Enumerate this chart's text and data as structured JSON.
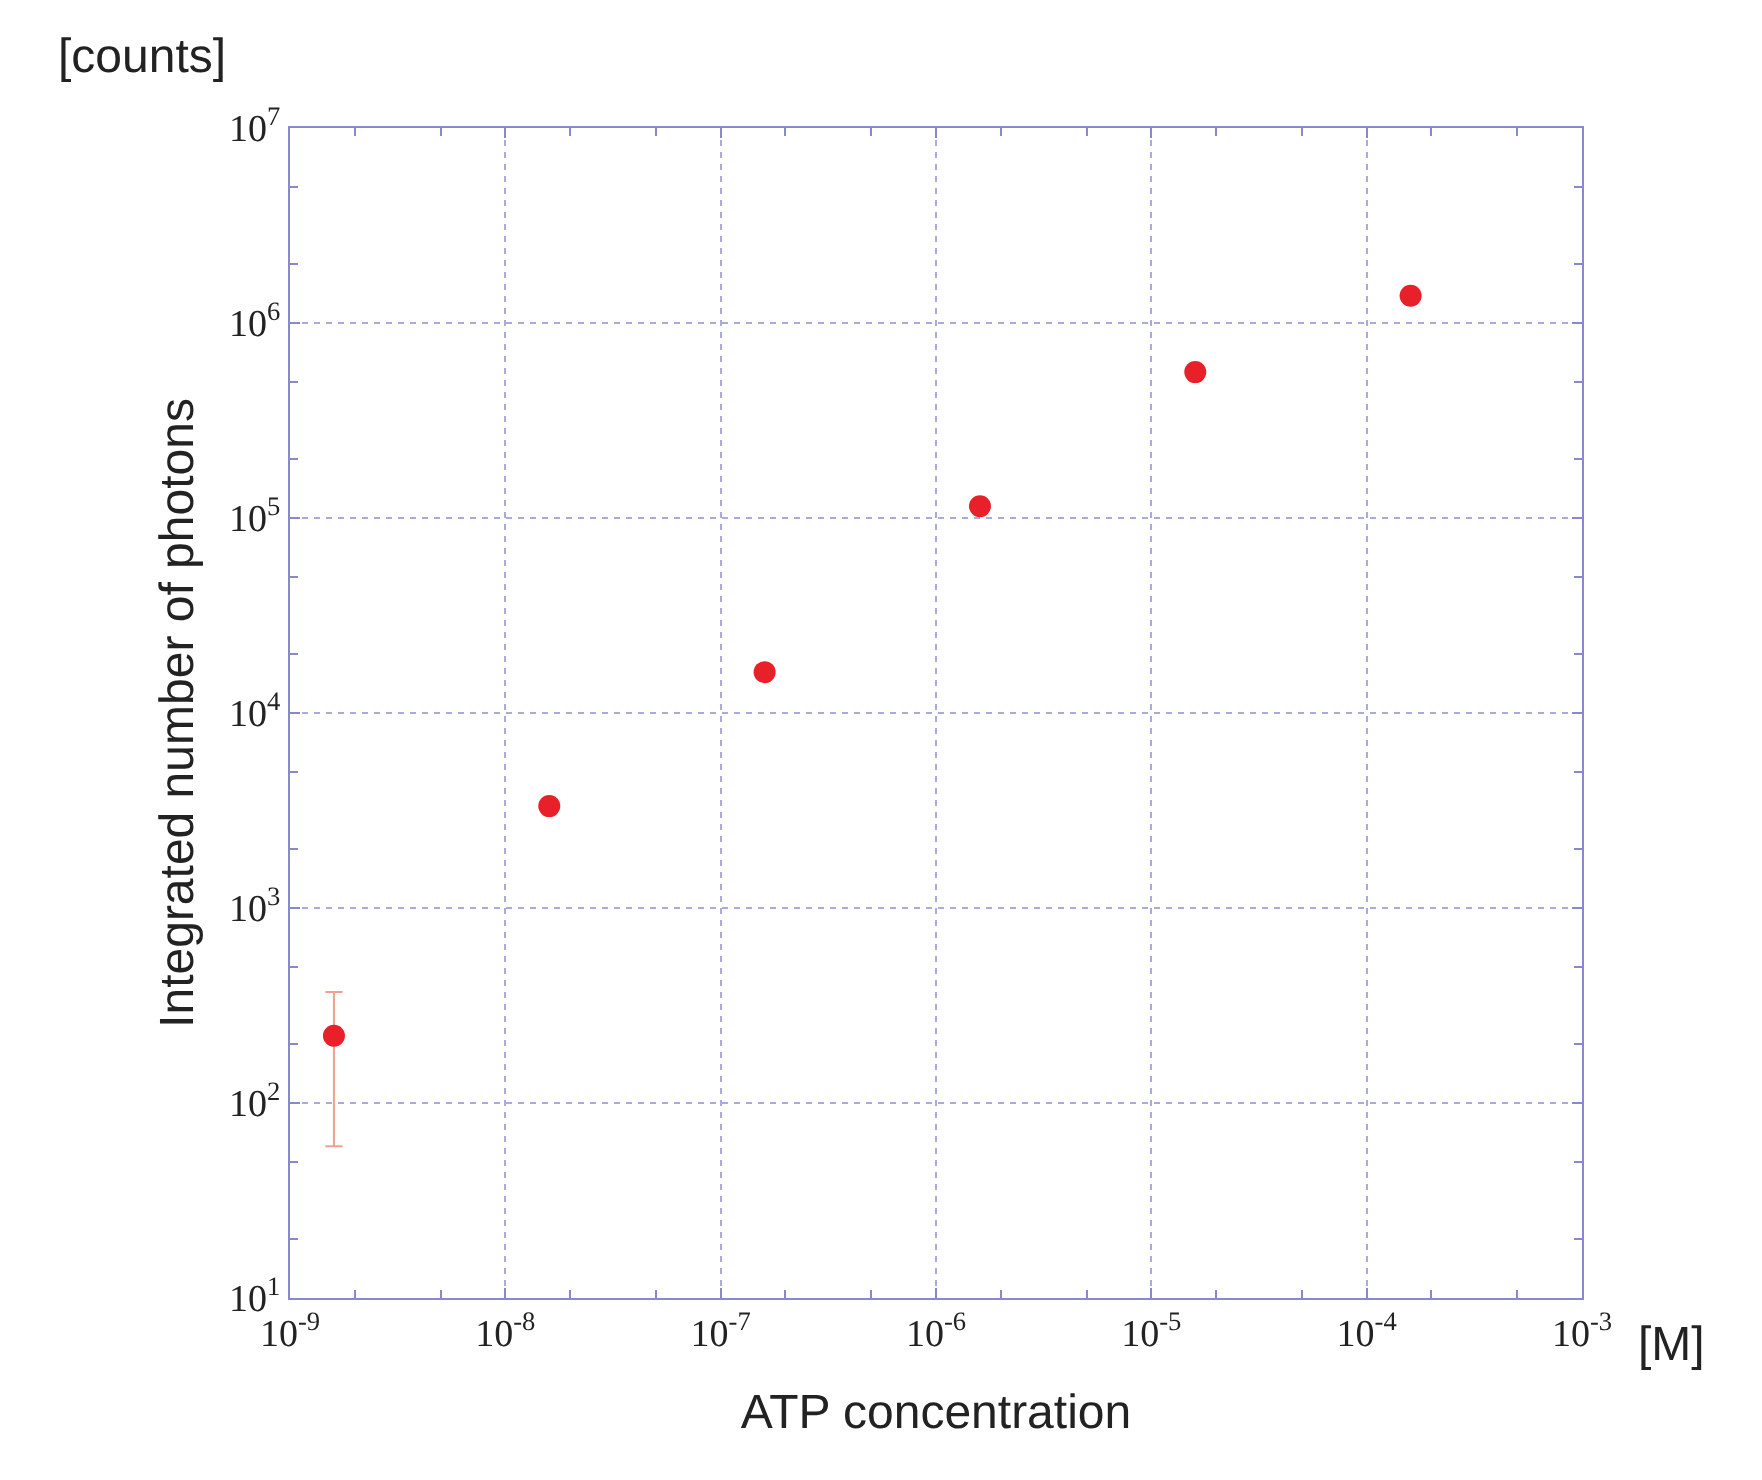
{
  "chart_data": {
    "type": "scatter",
    "xlabel": "ATP concentration",
    "ylabel": "Integrated number of photons",
    "annotations": [
      "[counts]",
      "[M]"
    ],
    "log": "xy",
    "grid": true,
    "marker": "circle",
    "x": [
      1.6e-09,
      1.6e-08,
      1.6e-07,
      1.6e-06,
      1.6e-05,
      0.00016
    ],
    "series": [
      {
        "color": "#e8202a",
        "values": [
          221,
          3330,
          16200,
          115000,
          560000,
          1380000
        ],
        "errors": [
          [
            60,
            371
          ],
          null,
          null,
          null,
          null,
          null
        ]
      }
    ],
    "xlim": [
      1e-09,
      0.001
    ],
    "ylim": [
      10,
      10000000.0
    ],
    "xticks": [
      {
        "value": 1e-09,
        "label": "10$^{-9}$"
      },
      {
        "value": 1e-08,
        "label": "10$^{-8}$"
      },
      {
        "value": 1e-07,
        "label": "10$^{-7}$"
      },
      {
        "value": 1e-06,
        "label": "10$^{-6}$"
      },
      {
        "value": 1e-05,
        "label": "10$^{-5}$"
      },
      {
        "value": 0.0001,
        "label": "10$^{-4}$"
      },
      {
        "value": 0.001,
        "label": "10$^{-3}$"
      }
    ],
    "yticks": [
      {
        "value": 10,
        "label": "10$^{1}$"
      },
      {
        "value": 100,
        "label": "10$^{2}$"
      },
      {
        "value": 1000,
        "label": "10$^{3}$"
      },
      {
        "value": 10000,
        "label": "10$^{4}$"
      },
      {
        "value": 100000,
        "label": "10$^{5}$"
      },
      {
        "value": 1000000,
        "label": "10$^{6}$"
      },
      {
        "value": 10000000,
        "label": "10$^{7}$"
      }
    ]
  }
}
